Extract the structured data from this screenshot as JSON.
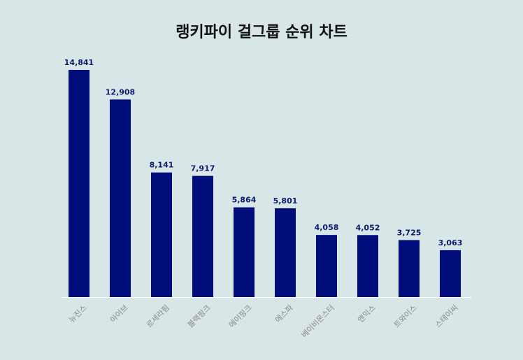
{
  "chart_data": {
    "type": "bar",
    "title": "랭키파이 걸그룹 순위 차트",
    "categories": [
      "뉴진스",
      "아이브",
      "르세라핌",
      "블랙핑크",
      "에이핑크",
      "에스파",
      "베이비몬스터",
      "엔믹스",
      "트와이스",
      "스테이씨"
    ],
    "values": [
      14841,
      12908,
      8141,
      7917,
      5864,
      5801,
      4058,
      4052,
      3725,
      3063
    ],
    "value_labels": [
      "14,841",
      "12,908",
      "8,141",
      "7,917",
      "5,864",
      "5,801",
      "4,058",
      "4,052",
      "3,725",
      "3,063"
    ],
    "ylim": [
      0,
      14841
    ],
    "grid": false,
    "legend": "none",
    "bar_color": "#000d7a",
    "label_color": "#0d1b6e"
  }
}
